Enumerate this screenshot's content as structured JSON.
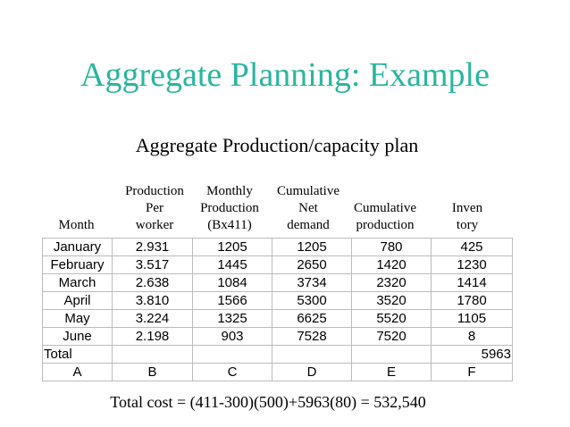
{
  "title": "Aggregate Planning: Example",
  "subtitle": "Aggregate Production/capacity plan",
  "headers": {
    "month": [
      "Month"
    ],
    "production_per_worker": [
      "Production",
      "Per",
      "worker"
    ],
    "monthly_production": [
      "Monthly",
      "Production",
      "(Bx411)"
    ],
    "cumulative_net_demand": [
      "Cumulative",
      "Net",
      "demand"
    ],
    "cumulative_production": [
      "Cumulative",
      "production"
    ],
    "inventory": [
      "Inven",
      "tory"
    ]
  },
  "rows": [
    {
      "month": "January",
      "per_worker": "2.931",
      "monthly": "1205",
      "cum_demand": "1205",
      "cum_production": "780",
      "inventory": "425"
    },
    {
      "month": "February",
      "per_worker": "3.517",
      "monthly": "1445",
      "cum_demand": "2650",
      "cum_production": "1420",
      "inventory": "1230"
    },
    {
      "month": "March",
      "per_worker": "2.638",
      "monthly": "1084",
      "cum_demand": "3734",
      "cum_production": "2320",
      "inventory": "1414"
    },
    {
      "month": "April",
      "per_worker": "3.810",
      "monthly": "1566",
      "cum_demand": "5300",
      "cum_production": "3520",
      "inventory": "1780"
    },
    {
      "month": "May",
      "per_worker": "3.224",
      "monthly": "1325",
      "cum_demand": "6625",
      "cum_production": "5520",
      "inventory": "1105"
    },
    {
      "month": "June",
      "per_worker": "2.198",
      "monthly": "903",
      "cum_demand": "7528",
      "cum_production": "7520",
      "inventory": "8"
    }
  ],
  "total_row": {
    "label": "Total",
    "inventory": "5963"
  },
  "column_letters": [
    "A",
    "B",
    "C",
    "D",
    "E",
    "F"
  ],
  "total_cost": "Total cost = (411-300)(500)+5963(80) = 532,540",
  "colors": {
    "title": "#2bb5a0",
    "grid": "#bcbcbc"
  }
}
